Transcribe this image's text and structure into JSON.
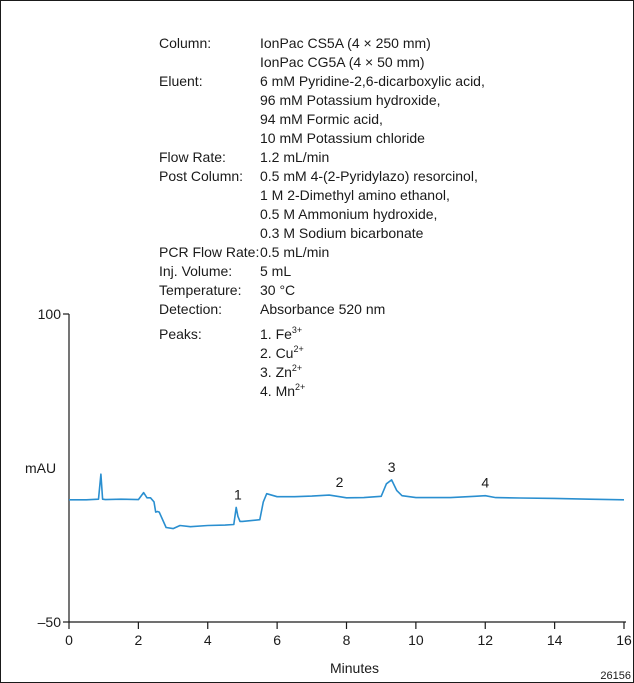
{
  "conditions": {
    "rows": [
      {
        "label": "Column:",
        "values": [
          "IonPac CS5A (4 × 250 mm)",
          "IonPac CG5A (4 × 50 mm)"
        ]
      },
      {
        "label": "Eluent:",
        "values": [
          "6 mM Pyridine-2,6-dicarboxylic acid,",
          "96 mM Potassium hydroxide,",
          "94 mM Formic acid,",
          "10 mM Potassium chloride"
        ]
      },
      {
        "label": "Flow Rate:",
        "values": [
          "1.2 mL/min"
        ]
      },
      {
        "label": "Post Column:",
        "values": [
          "0.5 mM 4-(2-Pyridylazo) resorcinol,",
          "1 M 2-Dimethyl amino ethanol,",
          "0.5 M Ammonium hydroxide,",
          "0.3 M Sodium bicarbonate"
        ]
      },
      {
        "label": "PCR Flow Rate:",
        "values": [
          "0.5 mL/min"
        ]
      },
      {
        "label": "Inj. Volume:",
        "values": [
          "5 mL"
        ]
      },
      {
        "label": "Temperature:",
        "values": [
          "30 °C"
        ]
      },
      {
        "label": "Detection:",
        "values": [
          "Absorbance 520 nm"
        ]
      }
    ],
    "peaks_label": "Peaks:",
    "peaks": [
      {
        "text": "1. Fe",
        "charge": "3+"
      },
      {
        "text": "2. Cu",
        "charge": "2+"
      },
      {
        "text": "3. Zn",
        "charge": "2+"
      },
      {
        "text": "4. Mn",
        "charge": "2+"
      }
    ]
  },
  "figure_id": "26156",
  "chart_data": {
    "type": "line",
    "title": "",
    "xlabel": "Minutes",
    "ylabel": "mAU",
    "xlim": [
      0,
      16
    ],
    "ylim": [
      -50,
      100
    ],
    "x_ticks": [
      "0",
      "2",
      "4",
      "6",
      "8",
      "10",
      "12",
      "14",
      "16"
    ],
    "y_ticks": [
      "100",
      "-50"
    ],
    "y_tick_display": [
      "100",
      "–50"
    ],
    "grid": false,
    "line_color": "#2a8fd0",
    "series": [
      {
        "x": [
          0,
          0.5,
          0.85,
          0.92,
          0.97,
          1.05,
          1.5,
          2.0,
          2.15,
          2.25,
          2.35,
          2.45,
          2.5,
          2.55,
          2.6,
          2.8,
          3.0,
          3.2,
          3.5,
          4.0,
          4.5,
          4.75,
          4.82,
          4.87,
          4.93,
          5.0,
          5.5,
          5.6,
          5.7,
          6.0,
          6.5,
          7.0,
          7.5,
          7.8,
          8.0,
          8.5,
          9.0,
          9.15,
          9.3,
          9.45,
          9.6,
          10.0,
          11.0,
          11.7,
          12.0,
          12.3,
          13.0,
          14.0,
          15.0,
          16.0
        ],
        "y": [
          9.5,
          9.5,
          9.8,
          22.0,
          9.8,
          9.6,
          9.8,
          9.6,
          13.0,
          10.5,
          10.5,
          8.5,
          3.5,
          3.8,
          3.5,
          -4.0,
          -4.5,
          -3.0,
          -3.6,
          -3.0,
          -2.8,
          -2.5,
          5.8,
          1.5,
          -1.0,
          -1.0,
          -0.2,
          8.5,
          12.5,
          11.0,
          11.0,
          11.3,
          11.8,
          11.0,
          10.5,
          10.6,
          11.2,
          17.3,
          19.2,
          14.0,
          11.5,
          10.6,
          10.6,
          11.2,
          11.5,
          10.6,
          10.4,
          10.2,
          9.8,
          9.5
        ]
      }
    ],
    "peak_labels": [
      {
        "label": "1",
        "x": 4.87,
        "y": 5.8
      },
      {
        "label": "2",
        "x": 7.8,
        "y": 11.8
      },
      {
        "label": "3",
        "x": 9.3,
        "y": 19.2
      },
      {
        "label": "4",
        "x": 12.0,
        "y": 11.5
      }
    ]
  }
}
